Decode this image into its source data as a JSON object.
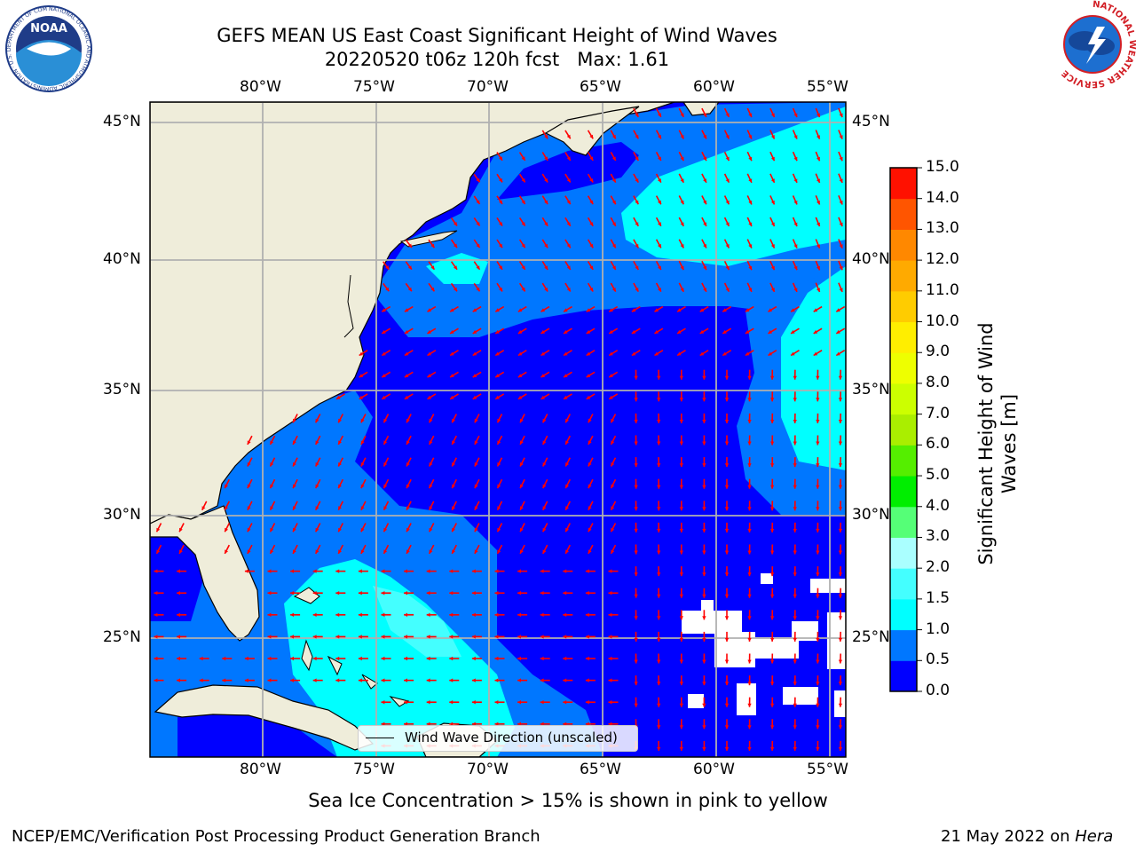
{
  "header": {
    "title_line1": "GEFS MEAN US East Coast Significant Height of Wind Waves",
    "title_line2": "20220520 t06z 120h fcst   Max: 1.61"
  },
  "logos": {
    "noaa_text": "NOAA",
    "noaa_ring": "NATIONAL OCEANIC AND ATMOSPHERIC ADMINISTRATION · U.S. DEPARTMENT OF COMMERCE",
    "nws_ring": "NATIONAL WEATHER SERVICE"
  },
  "map": {
    "lon_labels": [
      "80°W",
      "75°W",
      "70°W",
      "65°W",
      "60°W",
      "55°W"
    ],
    "lat_labels": [
      "45°N",
      "40°N",
      "35°N",
      "30°N",
      "25°N"
    ],
    "extent": {
      "lon_min": -85,
      "lon_max": -54.3,
      "lat_min": 20.5,
      "lat_max": 46
    },
    "land_color": "#efedda",
    "no_data_color": "#ffffff",
    "arrow_color": "#ff0000",
    "legend_label": "Wind Wave Direction (unscaled)"
  },
  "colorbar": {
    "label": "Significant Height of Wind Waves [m]",
    "ticks": [
      "0.0",
      "0.5",
      "1.0",
      "1.5",
      "2.0",
      "3.0",
      "4.0",
      "5.0",
      "6.0",
      "7.0",
      "8.0",
      "9.0",
      "10.0",
      "11.0",
      "12.0",
      "13.0",
      "14.0",
      "15.0"
    ],
    "colors": [
      "#0000ff",
      "#0077ff",
      "#00ffff",
      "#44ffff",
      "#aaffff",
      "#55ff77",
      "#00ee00",
      "#55ee00",
      "#aaee00",
      "#ccff00",
      "#eeff00",
      "#ffee00",
      "#ffcc00",
      "#ffaa00",
      "#ff8800",
      "#ff5500",
      "#ff1100"
    ]
  },
  "footer": {
    "note": "Sea Ice Concentration > 15% is shown in pink to yellow",
    "org": "NCEP/EMC/Verification Post Processing Product Generation Branch",
    "date": "21 May 2022 on ",
    "host": "Hera"
  }
}
